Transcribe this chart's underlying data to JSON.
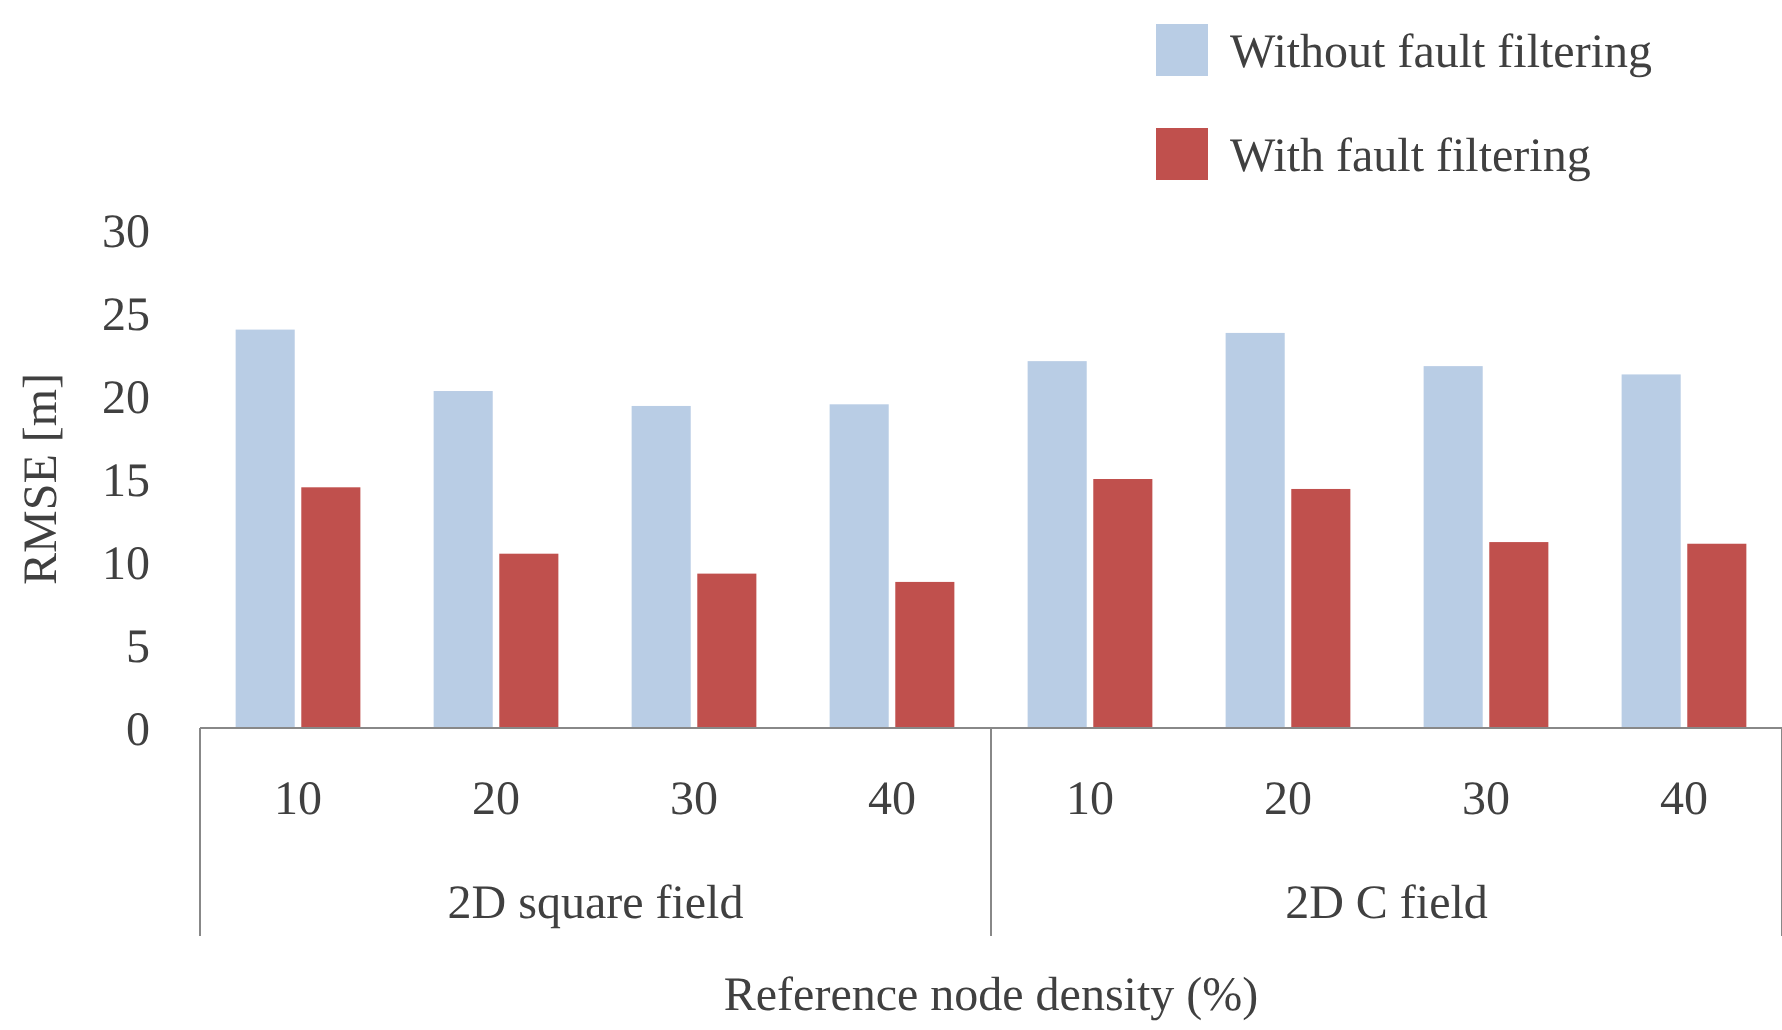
{
  "chart_data": {
    "type": "bar",
    "xlabel": "Reference node density (%)",
    "ylabel": "RMSE [m]",
    "categories": [
      "10",
      "20",
      "30",
      "40",
      "10",
      "20",
      "30",
      "40"
    ],
    "series": [
      {
        "name": "Without fault filtering",
        "color": "#b9cde5",
        "values": [
          24.0,
          20.3,
          19.4,
          19.5,
          22.1,
          23.8,
          21.8,
          21.3
        ]
      },
      {
        "name": "With fault filtering",
        "color": "#c0504d",
        "values": [
          14.5,
          10.5,
          9.3,
          8.8,
          15.0,
          14.4,
          11.2,
          11.1
        ]
      }
    ],
    "annotations": [
      "2D square field",
      "2D C field"
    ],
    "ylim": [
      0,
      30
    ],
    "yticks": [
      0,
      5,
      10,
      15,
      20,
      25,
      30
    ],
    "grid": false,
    "legend": "top right"
  }
}
